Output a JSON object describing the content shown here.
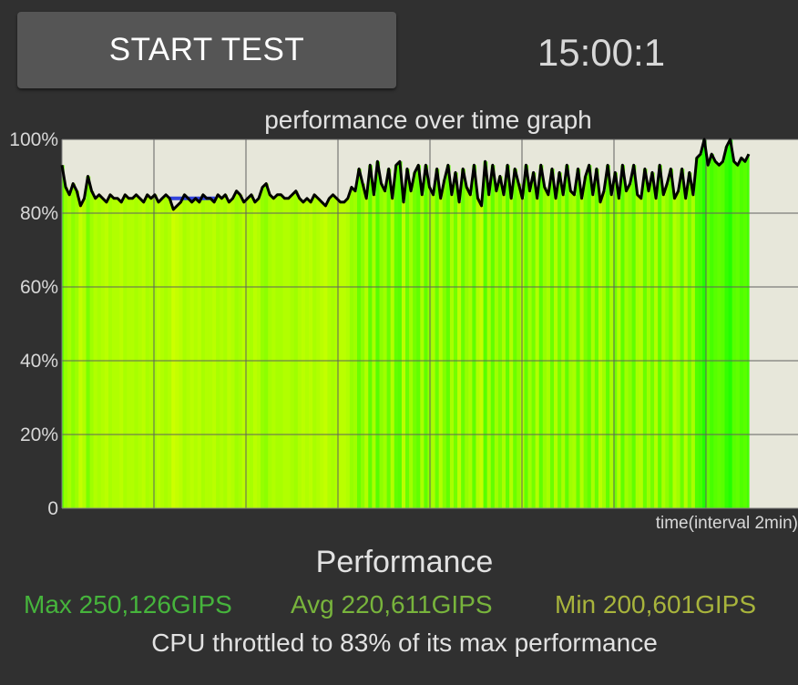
{
  "controls": {
    "start_button_label": "START TEST",
    "timer": "15:00:1"
  },
  "graph": {
    "title": "performance over time graph",
    "x_caption": "time(interval 2min)",
    "y_tick_labels": [
      "100%",
      "80%",
      "60%",
      "40%",
      "20%",
      "0"
    ]
  },
  "chart_data": {
    "type": "line",
    "title": "performance over time graph",
    "xlabel": "time(interval 2min)",
    "ylabel": "",
    "ylim": [
      0,
      100
    ],
    "yticks": [
      0,
      20,
      40,
      60,
      80,
      100
    ],
    "x_interval_minutes": 2,
    "grid": true,
    "colors": {
      "plot_background": "#e7e7da",
      "line": "#000000",
      "low_fill": "#ccff00",
      "high_fill": "#22ff00",
      "marker": "#3344dd"
    },
    "series": [
      {
        "values": [
          93,
          87,
          85,
          88,
          86,
          82,
          84,
          90,
          86,
          84,
          85,
          84,
          83,
          85,
          84,
          84,
          83,
          85,
          84,
          84,
          85,
          84,
          83,
          85,
          84,
          85,
          83,
          84,
          85,
          84,
          81,
          82,
          83,
          85,
          84,
          83,
          84,
          83,
          85,
          84,
          84,
          83,
          85,
          84,
          85,
          83,
          84,
          86,
          85,
          83,
          84,
          85,
          83,
          84,
          87,
          88,
          85,
          84,
          85,
          85,
          84,
          84,
          85,
          86,
          84,
          83,
          84,
          83,
          85,
          84,
          83,
          82,
          84,
          85,
          84,
          83,
          83,
          84,
          87,
          86,
          92,
          88,
          84,
          93,
          85,
          94,
          88,
          86,
          92,
          84,
          93,
          94,
          83,
          92,
          86,
          91,
          93,
          85,
          93,
          87,
          85,
          92,
          84,
          89,
          93,
          85,
          91,
          83,
          92,
          87,
          85,
          93,
          84,
          82,
          94,
          85,
          93,
          86,
          90,
          85,
          93,
          84,
          92,
          88,
          84,
          93,
          86,
          91,
          84,
          93,
          87,
          85,
          92,
          84,
          91,
          85,
          93,
          86,
          85,
          92,
          84,
          90,
          93,
          85,
          92,
          83,
          86,
          93,
          85,
          91,
          84,
          93,
          86,
          88,
          93,
          85,
          84,
          92,
          86,
          91,
          84,
          93,
          85,
          88,
          92,
          84,
          86,
          92,
          84,
          91,
          85,
          95,
          96,
          100,
          93,
          96,
          94,
          93,
          94,
          98,
          100,
          94,
          93,
          95,
          94,
          96
        ]
      }
    ]
  },
  "summary": {
    "title": "Performance",
    "max": "Max 250,126GIPS",
    "avg": "Avg 220,611GIPS",
    "min": "Min 200,601GIPS",
    "throttle": "CPU throttled to 83% of its max performance",
    "colors": {
      "max": "#46b43c",
      "avg": "#78b43c",
      "min": "#a8b43c"
    }
  }
}
